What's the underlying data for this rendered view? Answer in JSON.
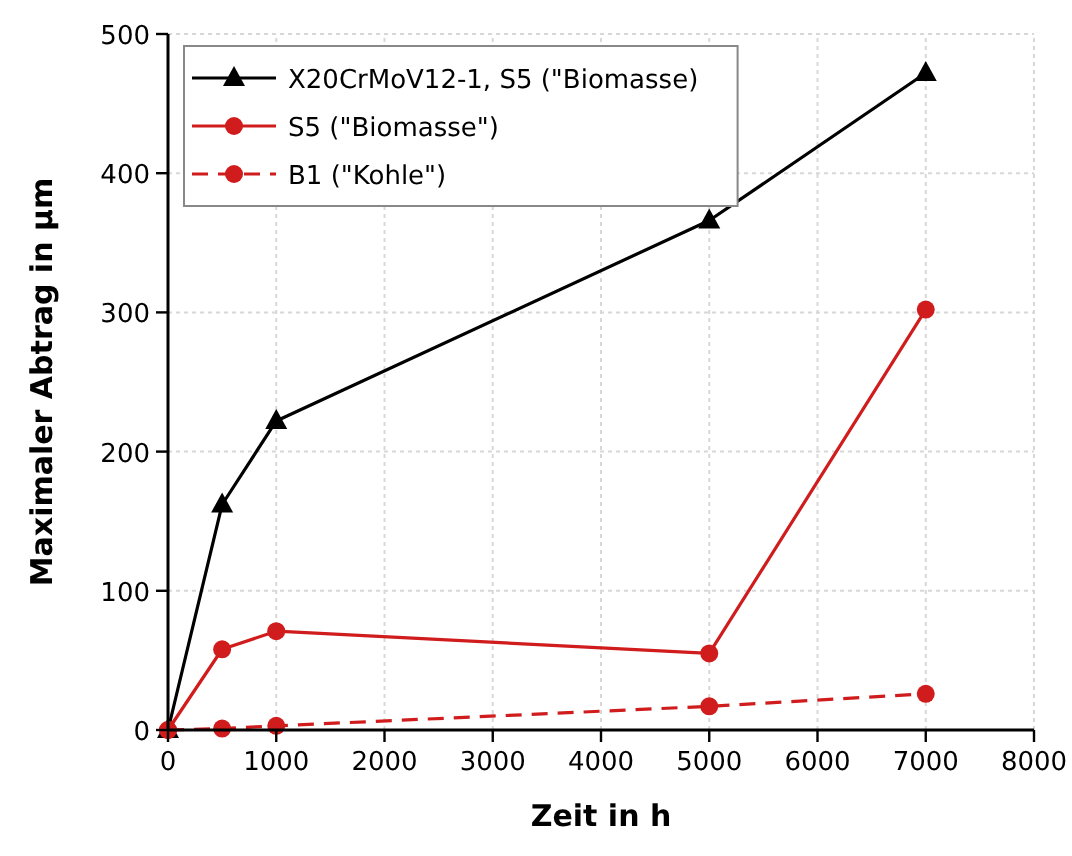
{
  "chart_data": {
    "type": "line",
    "xlabel": "Zeit in h",
    "ylabel": "Maximaler Abtrag in µm",
    "x": [
      0,
      500,
      1000,
      5000,
      7000
    ],
    "series": [
      {
        "name": "X20CrMoV12-1, S5 (\"Biomasse)",
        "color": "#000000",
        "values": [
          0,
          162,
          222,
          366,
          472
        ],
        "marker": "triangle",
        "line_style": "solid"
      },
      {
        "name": "S5 (\"Biomasse\")",
        "color": "#d01c1c",
        "values": [
          0,
          58,
          71,
          55,
          302
        ],
        "marker": "circle",
        "line_style": "solid"
      },
      {
        "name": "B1 (\"Kohle\")",
        "color": "#d01c1c",
        "values": [
          0,
          1,
          3,
          17,
          26
        ],
        "marker": "circle",
        "line_style": "dashed"
      }
    ],
    "xlim": [
      0,
      8000
    ],
    "xticks": [
      0,
      1000,
      2000,
      3000,
      4000,
      5000,
      6000,
      7000,
      8000
    ],
    "ylim": [
      0,
      500
    ],
    "yticks": [
      0,
      100,
      200,
      300,
      400,
      500
    ],
    "grid": true,
    "legend": "top left"
  }
}
